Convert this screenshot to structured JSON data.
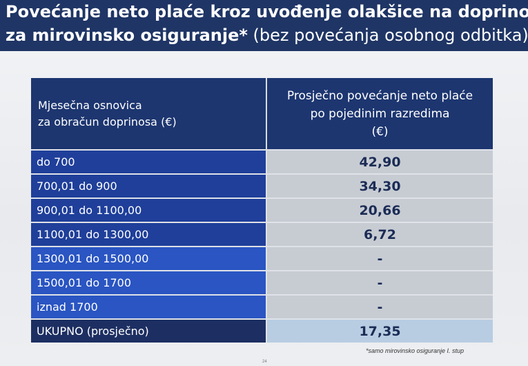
{
  "title": {
    "line1": "Povećanje neto plaće kroz uvođenje olakšice na doprinose",
    "line2_bold": "za mirovinsko osiguranje*",
    "line2_normal": " (bez povećanja osobnog odbitka)"
  },
  "table": {
    "header_left_line1": "Mjesečna osnovica",
    "header_left_line2": "za obračun doprinosa (€)",
    "header_right_line1": "Prosječno povećanje neto plaće",
    "header_right_line2": "po pojedinim razredima",
    "header_right_line3": "(€)",
    "rows": [
      {
        "range": "do 700",
        "value": "42,90"
      },
      {
        "range": "700,01 do 900",
        "value": "34,30"
      },
      {
        "range": "900,01 do 1100,00",
        "value": "20,66"
      },
      {
        "range": "1100,01 do 1300,00",
        "value": "6,72"
      },
      {
        "range": "1300,01 do 1500,00",
        "value": "-"
      },
      {
        "range": "1500,01 do 1700",
        "value": "-"
      },
      {
        "range": "iznad 1700",
        "value": "-"
      }
    ],
    "total": {
      "label": "UKUPNO (prosječno)",
      "value": "17,35"
    }
  },
  "footnote": "*samo mirovinsko osiguranje I. stup",
  "page_number": "24"
}
